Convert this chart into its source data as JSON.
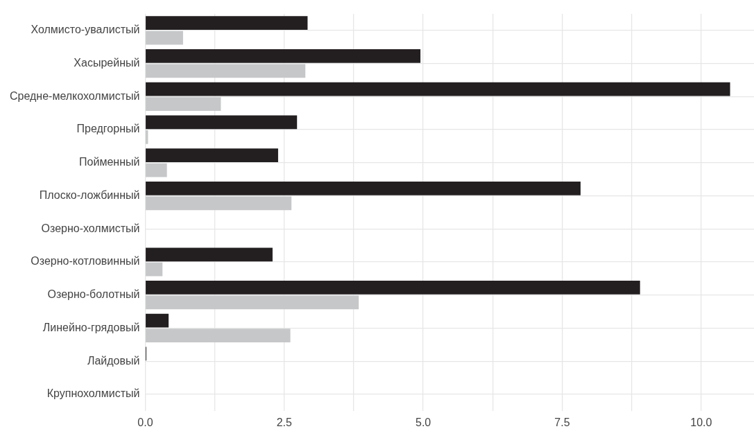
{
  "chart_data": {
    "type": "bar",
    "orientation": "horizontal",
    "categories": [
      "Холмисто-увалистый",
      "Хасырейный",
      "Средне-мелкохолмистый",
      "Предгорный",
      "Пойменный",
      "Плоско-ложбинный",
      "Озерно-холмистый",
      "Озерно-котловинный",
      "Озерно-болотный",
      "Линейно-грядовый",
      "Лайдовый",
      "Крупнохолмистый"
    ],
    "series": [
      {
        "color": "#231f20",
        "values": [
          2.92,
          4.95,
          10.52,
          2.73,
          2.39,
          7.83,
          0,
          2.29,
          8.9,
          0.42,
          0.02,
          0
        ]
      },
      {
        "color": "#c6c7c9",
        "values": [
          0.68,
          2.88,
          1.36,
          0.05,
          0.39,
          2.63,
          0,
          0.31,
          3.84,
          2.61,
          0,
          0
        ]
      }
    ],
    "xlim": [
      0,
      10.95
    ],
    "xticks": [
      {
        "value": 0,
        "label": "0.0"
      },
      {
        "value": 1.25,
        "label": null
      },
      {
        "value": 2.5,
        "label": "2.5"
      },
      {
        "value": 3.75,
        "label": null
      },
      {
        "value": 5,
        "label": "5.0"
      },
      {
        "value": 6.25,
        "label": null
      },
      {
        "value": 7.5,
        "label": "7.5"
      },
      {
        "value": 8.75,
        "label": null
      },
      {
        "value": 10,
        "label": "10.0"
      }
    ],
    "grid": true,
    "legend": false
  }
}
